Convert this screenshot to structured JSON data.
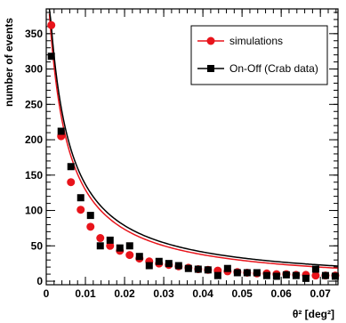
{
  "chart_data": {
    "type": "scatter",
    "xlabel": "θ² [deg²]",
    "ylabel": "number of events",
    "xlim": [
      0,
      0.0745
    ],
    "ylim": [
      -5,
      385
    ],
    "x_ticks": [
      "0",
      "0.01",
      "0.02",
      "0.03",
      "0.04",
      "0.05",
      "0.06",
      "0.07"
    ],
    "y_ticks": [
      "0",
      "50",
      "100",
      "150",
      "200",
      "250",
      "300",
      "350"
    ],
    "x_tick_values": [
      0,
      0.01,
      0.02,
      0.03,
      0.04,
      0.05,
      0.06,
      0.07
    ],
    "y_tick_values": [
      0,
      50,
      100,
      150,
      200,
      250,
      300,
      350
    ],
    "legend_position": "top-right",
    "series": [
      {
        "name": "simulations",
        "color": "#e8141b",
        "marker": "circle",
        "x": [
          0.0013,
          0.0038,
          0.0063,
          0.0088,
          0.0113,
          0.0138,
          0.0163,
          0.0188,
          0.0213,
          0.0238,
          0.0263,
          0.0288,
          0.0313,
          0.0338,
          0.0363,
          0.0388,
          0.0413,
          0.0438,
          0.0463,
          0.0488,
          0.0513,
          0.0538,
          0.0563,
          0.0588,
          0.0613,
          0.0638,
          0.0663,
          0.0688,
          0.0713,
          0.0738
        ],
        "y": [
          362,
          205,
          140,
          101,
          77,
          61,
          50,
          43,
          37,
          32,
          28,
          25,
          23,
          21,
          19,
          17,
          16,
          15,
          14,
          13,
          12,
          11,
          11,
          10,
          10,
          9,
          9,
          8,
          8,
          8
        ]
      },
      {
        "name": "On-Off (Crab data)",
        "color": "#000000",
        "marker": "square",
        "x": [
          0.0013,
          0.0038,
          0.0063,
          0.0088,
          0.0113,
          0.0138,
          0.0163,
          0.0188,
          0.0213,
          0.0238,
          0.0263,
          0.0288,
          0.0313,
          0.0338,
          0.0363,
          0.0388,
          0.0413,
          0.0438,
          0.0463,
          0.0488,
          0.0513,
          0.0538,
          0.0563,
          0.0588,
          0.0613,
          0.0638,
          0.0663,
          0.0688,
          0.0713,
          0.0738
        ],
        "y": [
          318,
          212,
          162,
          118,
          93,
          50,
          58,
          47,
          50,
          35,
          22,
          28,
          25,
          22,
          18,
          17,
          16,
          8,
          18,
          12,
          12,
          12,
          8,
          7,
          9,
          8,
          4,
          17,
          8,
          7
        ]
      }
    ]
  }
}
